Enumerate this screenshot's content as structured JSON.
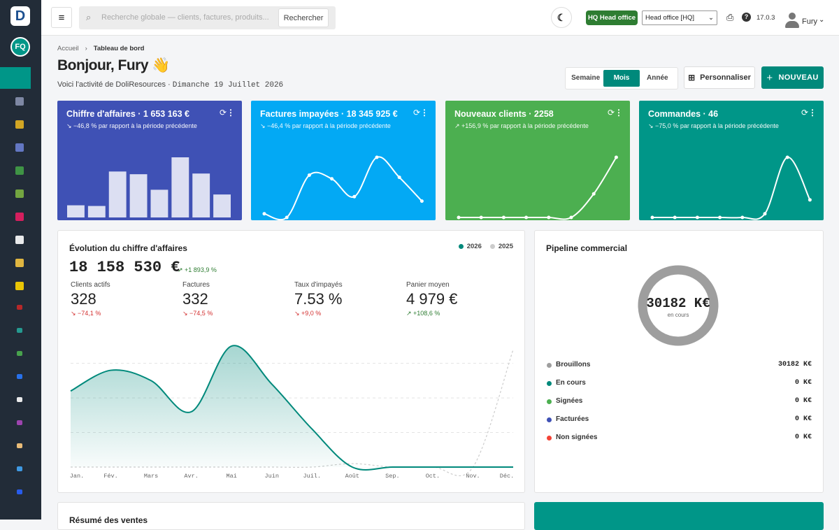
{
  "sidebar": {
    "logo": "D",
    "avatar": "FQ"
  },
  "topbar": {
    "search_placeholder": "Recherche globale — clients, factures, produits...",
    "search_button": "Rechercher",
    "entity_badge": "HQ Head office",
    "entity_select": "Head office [HQ]",
    "version": "17.0.3",
    "user": "Fury"
  },
  "breadcrumb": [
    "Accueil",
    "Tableau de bord"
  ],
  "greeting": "Bonjour, Fury 👋",
  "subtitle": "Voici l'activité de DoliResources ·",
  "date": "Dimanche 19 Juillet 2026",
  "period_tabs": {
    "items": [
      "Semaine",
      "Mois",
      "Année"
    ],
    "active": 1
  },
  "customize": "Personnaliser",
  "new_button": "NOUVEAU",
  "kpi_cards": [
    {
      "title": "Chiffre d'affaires · 1 653 163 €",
      "change": "↘ −46,8 % par rapport à la période précédente",
      "color": "#3f51b5",
      "type": "bar",
      "values": [
        18,
        17,
        68,
        64,
        41,
        89,
        65,
        34
      ]
    },
    {
      "title": "Factures impayées · 18 345 925 €",
      "change": "↘ −46,4 % par rapport à la période précédente",
      "color": "#03a9f4",
      "type": "line",
      "values": [
        5,
        0,
        57,
        52,
        28,
        81,
        54,
        22
      ]
    },
    {
      "title": "Nouveaux clients · 2258",
      "change": "↗ +156,9 % par rapport à la période précédente",
      "color": "#4caf50",
      "type": "line",
      "values": [
        0,
        0,
        0,
        0,
        0,
        0,
        31,
        79
      ]
    },
    {
      "title": "Commandes · 46",
      "change": "↘ −75,0 % par rapport à la période précédente",
      "color": "#009688",
      "type": "line",
      "values": [
        0,
        0,
        0,
        0,
        0,
        5,
        82,
        24
      ]
    }
  ],
  "revenue": {
    "title": "Évolution du chiffre d'affaires",
    "total": "18 158 530 €",
    "total_change": "↗ +1 893,9 %",
    "stats": [
      {
        "label": "Clients actifs",
        "value": "328",
        "change": "↘ −74,1 %",
        "trend": "down"
      },
      {
        "label": "Factures",
        "value": "332",
        "change": "↘ −74,5 %",
        "trend": "down"
      },
      {
        "label": "Taux d'impayés",
        "value": "7.53 %",
        "change": "↘ +9,0 %",
        "trend": "down"
      },
      {
        "label": "Panier moyen",
        "value": "4 979 €",
        "change": "↗ +108,6 %",
        "trend": "up"
      }
    ],
    "chart": {
      "type": "area",
      "categories": [
        "Jan.",
        "Fév.",
        "Mars",
        "Avr.",
        "Mai",
        "Juin",
        "Juil.",
        "Août",
        "Sep.",
        "Oct.",
        "Nov.",
        "Déc."
      ],
      "series": [
        {
          "name": "2026",
          "color": "#00897b",
          "values": [
            2.2,
            2.8,
            2.5,
            1.6,
            3.5,
            2.4,
            1.1,
            0,
            0,
            0,
            0,
            0
          ]
        },
        {
          "name": "2025",
          "color": "#cccccc",
          "values": [
            0,
            0,
            0,
            0,
            0,
            0,
            0,
            0.1,
            0,
            0,
            0,
            3.4
          ]
        }
      ],
      "ylim": [
        0,
        3.6
      ],
      "yticks": [
        1,
        2,
        3
      ],
      "grid": true
    }
  },
  "pipeline": {
    "title": "Pipeline commercial",
    "center_value": "30182 K€",
    "center_label": "en cours",
    "type": "donut",
    "items": [
      {
        "name": "Brouillons",
        "color": "#9e9e9e",
        "value": 30182,
        "value_label": "30182 K€"
      },
      {
        "name": "En cours",
        "color": "#00897b",
        "value": 0,
        "value_label": "0 K€"
      },
      {
        "name": "Signées",
        "color": "#4caf50",
        "value": 0,
        "value_label": "0 K€"
      },
      {
        "name": "Facturées",
        "color": "#3f51b5",
        "value": 0,
        "value_label": "0 K€"
      },
      {
        "name": "Non signées",
        "color": "#f44336",
        "value": 0,
        "value_label": "0 K€"
      }
    ]
  },
  "sales_summary": {
    "title": "Résumé des ventes"
  }
}
